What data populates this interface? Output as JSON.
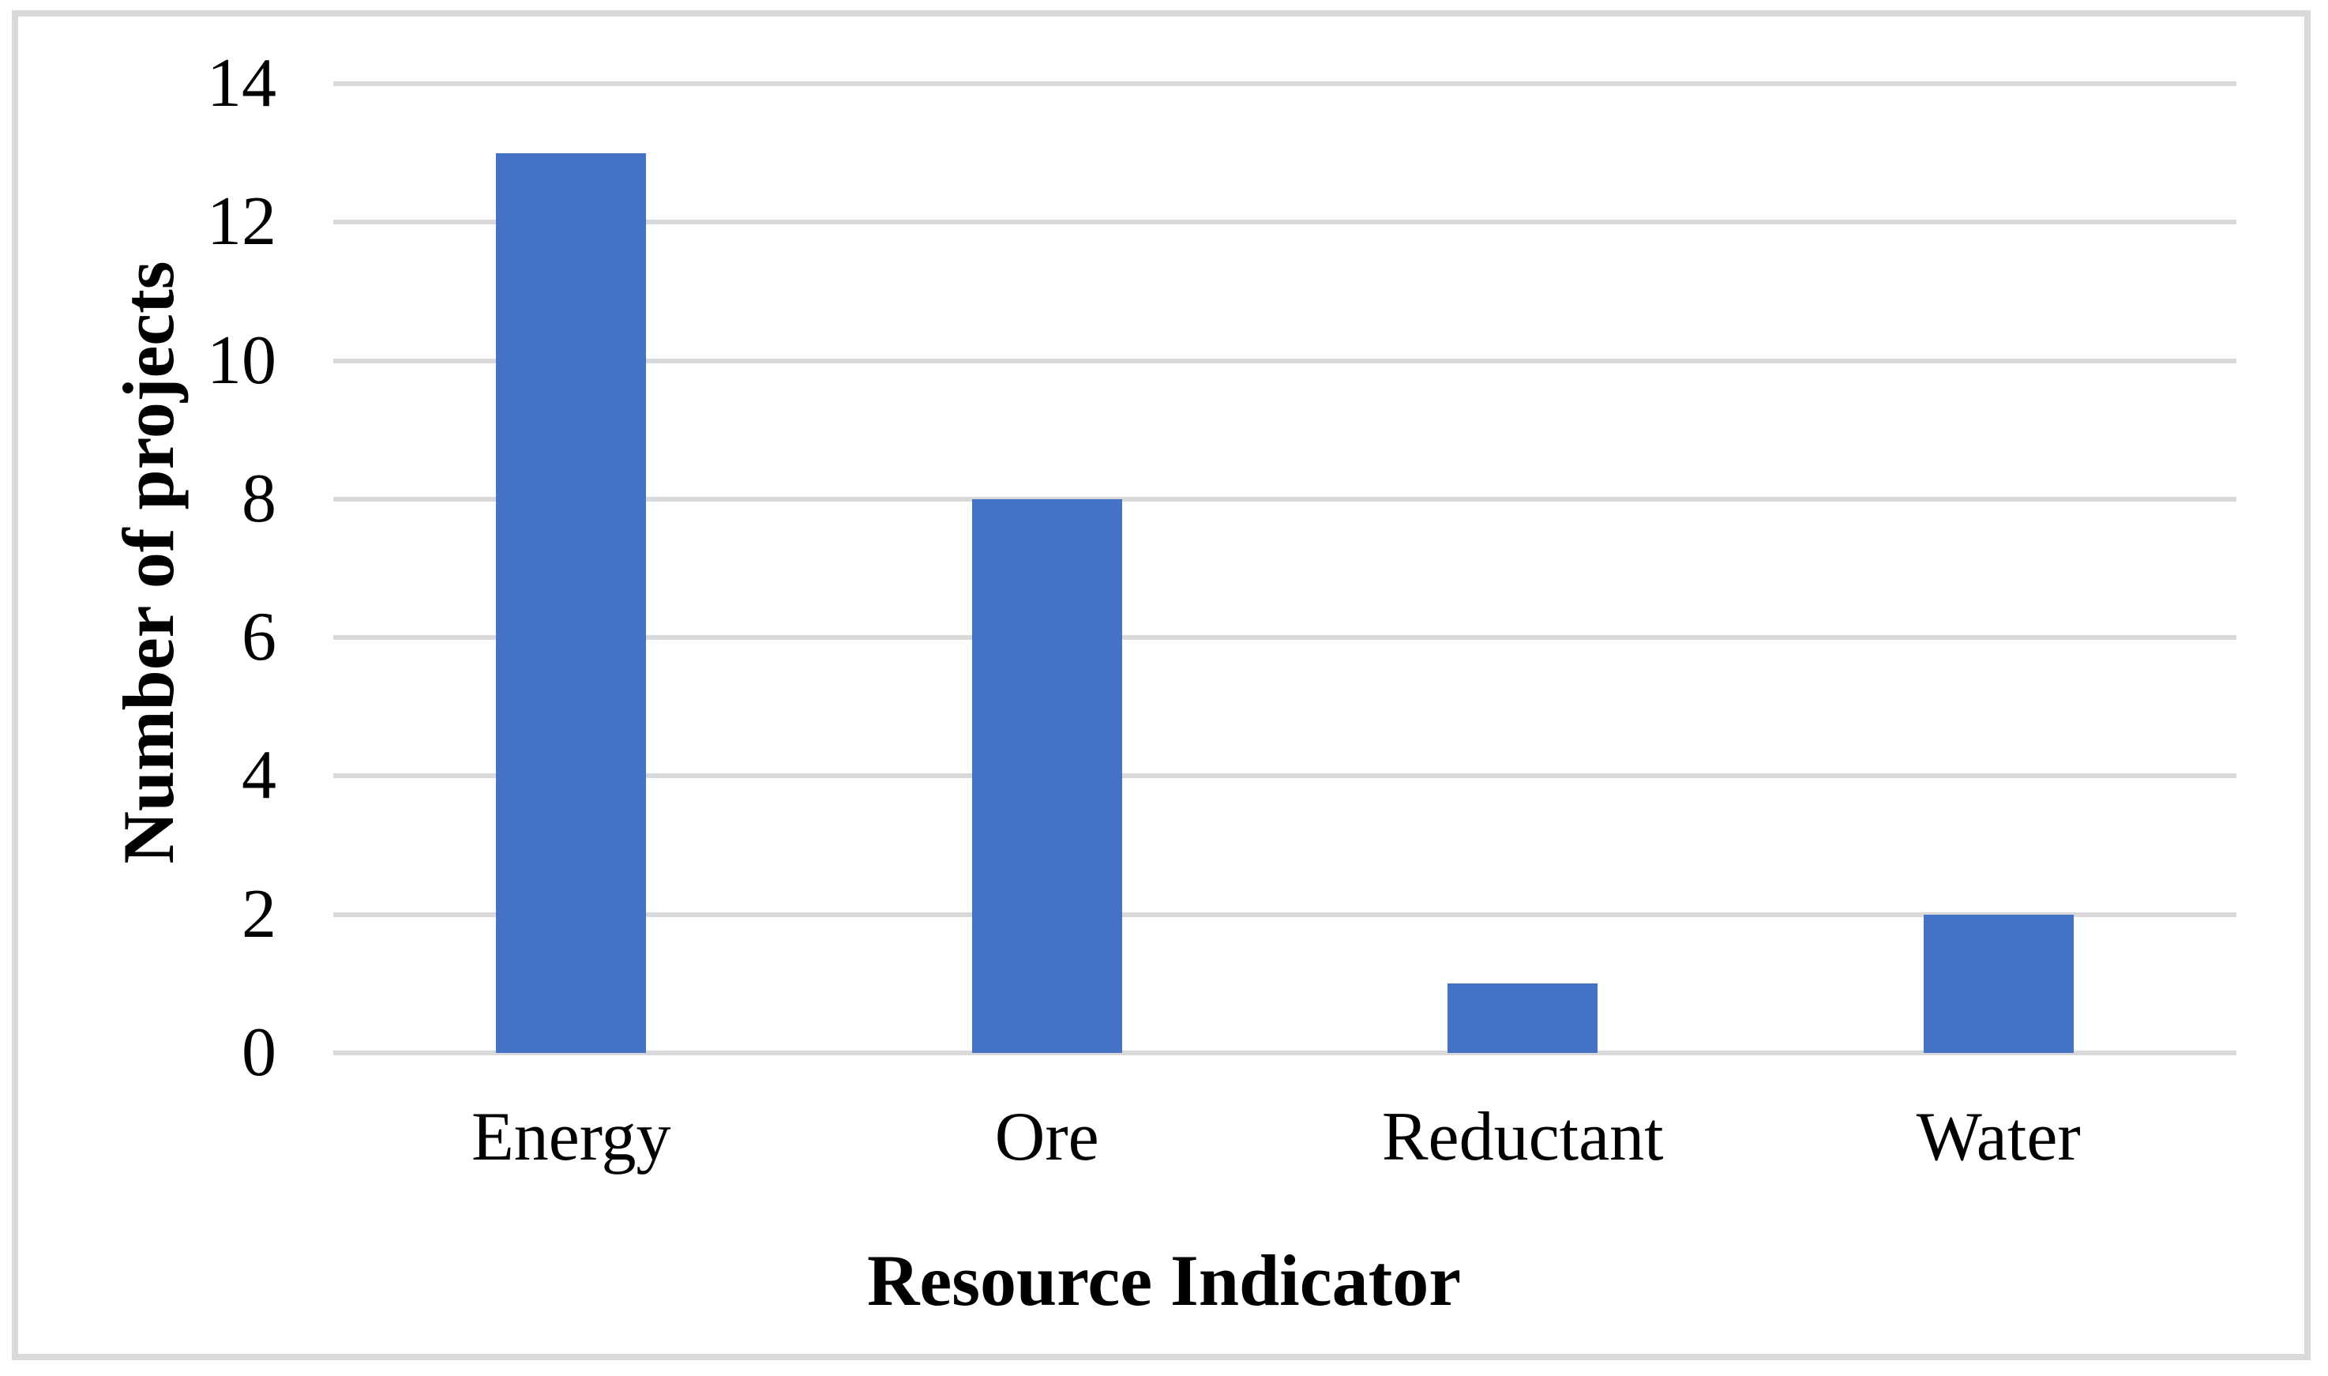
{
  "chart_data": {
    "type": "bar",
    "categories": [
      "Energy",
      "Ore",
      "Reductant",
      "Water"
    ],
    "values": [
      13,
      8,
      1,
      2
    ],
    "title": "",
    "xlabel": "Resource Indicator",
    "ylabel": "Number of projects",
    "ylim": [
      0,
      14
    ],
    "yticks": [
      0,
      2,
      4,
      6,
      8,
      10,
      12,
      14
    ],
    "grid": "horizontal",
    "legend": "none",
    "bar_color": "#4472C4",
    "gridline_color": "#D9D9D9",
    "frame_color": "#D9D9D9",
    "text_color": "#000000",
    "background": "#FFFFFF"
  }
}
